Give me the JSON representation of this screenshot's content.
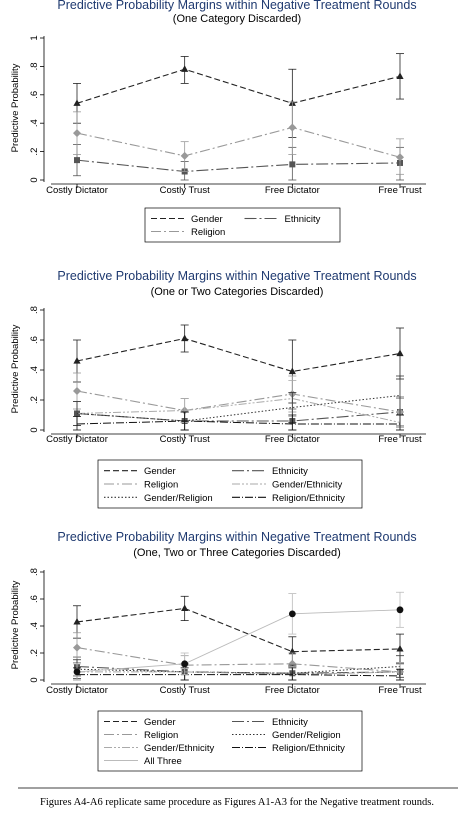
{
  "caption": "Figures A4-A6 replicate same procedure as Figures A1-A3 for the Negative treatment rounds.",
  "colors": {
    "Gender": "#222222",
    "Ethnicity": "#555555",
    "Religion": "#999999",
    "Gender/Religion": "#333333",
    "Gender/Ethnicity": "#aaaaaa",
    "Religion/Ethnicity": "#111111",
    "All Three": "#bbbbbb"
  },
  "chart_data": [
    {
      "type": "line",
      "title": "Predictive Probability Margins within Negative Treatment Rounds",
      "subtitle": "(One Category Discarded)",
      "ylabel": "Predictive Probability",
      "xlabel": "",
      "categories": [
        "Costly Dictator",
        "Costly Trust",
        "Free Dictator",
        "Free Trust"
      ],
      "ylim": [
        0,
        1
      ],
      "yticks": [
        "0",
        ".2",
        ".4",
        ".6",
        ".8",
        "1"
      ],
      "legend_position": "bottom",
      "series": [
        {
          "name": "Gender",
          "values": [
            0.54,
            0.78,
            0.54,
            0.73
          ],
          "low": [
            0.4,
            0.68,
            0.3,
            0.57
          ],
          "high": [
            0.68,
            0.87,
            0.78,
            0.89
          ]
        },
        {
          "name": "Ethnicity",
          "values": [
            0.14,
            0.06,
            0.11,
            0.12
          ],
          "low": [
            0.03,
            0.0,
            0.0,
            0.0
          ],
          "high": [
            0.25,
            0.13,
            0.23,
            0.23
          ]
        },
        {
          "name": "Religion",
          "values": [
            0.33,
            0.17,
            0.37,
            0.16
          ],
          "low": [
            0.18,
            0.06,
            0.18,
            0.04
          ],
          "high": [
            0.48,
            0.27,
            0.55,
            0.29
          ]
        }
      ]
    },
    {
      "type": "line",
      "title": "Predictive Probability Margins within Negative Treatment Rounds",
      "subtitle": "(One or Two Categories Discarded)",
      "ylabel": "Predictive Probability",
      "xlabel": "",
      "categories": [
        "Costly Dictator",
        "Costly Trust",
        "Free Dictator",
        "Free Trust"
      ],
      "ylim": [
        0,
        0.8
      ],
      "yticks": [
        "0",
        ".2",
        ".4",
        ".6",
        ".8"
      ],
      "legend_position": "bottom",
      "series": [
        {
          "name": "Gender",
          "values": [
            0.46,
            0.61,
            0.39,
            0.51
          ],
          "low": [
            0.32,
            0.52,
            0.18,
            0.34
          ],
          "high": [
            0.6,
            0.7,
            0.6,
            0.68
          ]
        },
        {
          "name": "Ethnicity",
          "values": [
            0.11,
            0.06,
            0.06,
            0.12
          ],
          "low": [
            0.03,
            0.0,
            0.0,
            0.02
          ],
          "high": [
            0.19,
            0.12,
            0.14,
            0.22
          ]
        },
        {
          "name": "Religion",
          "values": [
            0.26,
            0.13,
            0.24,
            0.12
          ],
          "low": [
            0.14,
            0.05,
            0.12,
            0.03
          ],
          "high": [
            0.38,
            0.21,
            0.36,
            0.21
          ]
        },
        {
          "name": "Gender/Ethnicity",
          "values": [
            0.11,
            0.13,
            0.21,
            0.05
          ],
          "low": [
            0.03,
            0.05,
            0.09,
            0.0
          ],
          "high": [
            0.19,
            0.21,
            0.33,
            0.12
          ]
        },
        {
          "name": "Gender/Religion",
          "values": [
            0.11,
            0.06,
            0.15,
            0.23
          ],
          "low": [
            0.03,
            0.0,
            0.05,
            0.1
          ],
          "high": [
            0.19,
            0.12,
            0.25,
            0.36
          ]
        },
        {
          "name": "Religion/Ethnicity",
          "values": [
            0.04,
            0.06,
            0.04,
            0.04
          ],
          "low": [
            0.0,
            0.0,
            0.0,
            0.0
          ],
          "high": [
            0.09,
            0.12,
            0.1,
            0.1
          ]
        }
      ]
    },
    {
      "type": "line",
      "title": "Predictive Probability Margins within Negative Treatment Rounds",
      "subtitle": "(One, Two or Three Categories Discarded)",
      "ylabel": "Predictive Probability",
      "xlabel": "",
      "categories": [
        "Costly Dictator",
        "Costly Trust",
        "Free Dictator",
        "Free Trust"
      ],
      "ylim": [
        0,
        0.8
      ],
      "yticks": [
        "0",
        ".2",
        ".4",
        ".6",
        ".8"
      ],
      "legend_position": "bottom",
      "series": [
        {
          "name": "Gender",
          "values": [
            0.43,
            0.53,
            0.21,
            0.23
          ],
          "low": [
            0.31,
            0.44,
            0.1,
            0.12
          ],
          "high": [
            0.55,
            0.62,
            0.32,
            0.34
          ]
        },
        {
          "name": "Ethnicity",
          "values": [
            0.1,
            0.06,
            0.05,
            0.06
          ],
          "low": [
            0.03,
            0.0,
            0.0,
            0.0
          ],
          "high": [
            0.17,
            0.12,
            0.11,
            0.13
          ]
        },
        {
          "name": "Religion",
          "values": [
            0.24,
            0.11,
            0.12,
            0.06
          ],
          "low": [
            0.13,
            0.04,
            0.04,
            0.0
          ],
          "high": [
            0.35,
            0.18,
            0.2,
            0.13
          ]
        },
        {
          "name": "Gender/Religion",
          "values": [
            0.08,
            0.06,
            0.05,
            0.1
          ],
          "low": [
            0.01,
            0.0,
            0.0,
            0.02
          ],
          "high": [
            0.15,
            0.12,
            0.11,
            0.18
          ]
        },
        {
          "name": "Gender/Ethnicity",
          "values": [
            0.06,
            0.06,
            0.04,
            0.06
          ],
          "low": [
            0.0,
            0.0,
            0.0,
            0.0
          ],
          "high": [
            0.12,
            0.12,
            0.1,
            0.13
          ]
        },
        {
          "name": "Religion/Ethnicity",
          "values": [
            0.04,
            0.04,
            0.04,
            0.03
          ],
          "low": [
            0.0,
            0.0,
            0.0,
            0.0
          ],
          "high": [
            0.09,
            0.09,
            0.09,
            0.08
          ]
        },
        {
          "name": "All Three",
          "values": [
            0.06,
            0.12,
            0.49,
            0.52
          ],
          "low": [
            0.0,
            0.04,
            0.34,
            0.39
          ],
          "high": [
            0.12,
            0.2,
            0.64,
            0.65
          ]
        }
      ]
    }
  ]
}
